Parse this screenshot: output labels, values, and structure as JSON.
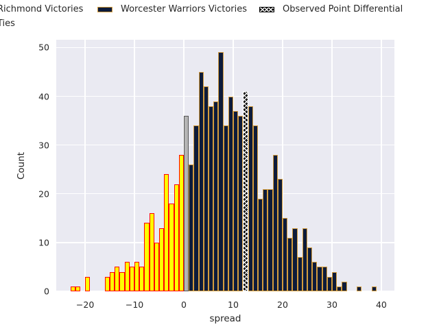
{
  "legend": {
    "items": [
      {
        "key": "richmond",
        "label": "Richmond Victories"
      },
      {
        "key": "worcester",
        "label": "Worcester Warriors Victories"
      },
      {
        "key": "observed",
        "label": "Observed Point Differential"
      },
      {
        "key": "ties",
        "label": "Ties"
      }
    ]
  },
  "colors": {
    "plot_background": "#eaeaf2",
    "grid": "#ffffff",
    "richmond_fill": "#ffff00",
    "richmond_edge": "#ff0000",
    "worcester_fill": "#0d1b3a",
    "worcester_edge": "#d49c3d",
    "ties_fill": "#b5b5b5",
    "ties_edge": "#565656",
    "observed_fill": "#000000",
    "observed_edge": "#ffffff",
    "text": "#262626"
  },
  "chart_data": {
    "type": "bar",
    "subtype": "histogram",
    "title": "",
    "xlabel": "spread",
    "ylabel": "Count",
    "xlim": [
      -25.85,
      42.65
    ],
    "ylim": [
      0,
      51.6
    ],
    "x_tick_values": [
      -20,
      -10,
      0,
      10,
      20,
      30,
      40
    ],
    "x_tick_labels": [
      "−20",
      "−10",
      "0",
      "10",
      "20",
      "30",
      "40"
    ],
    "y_tick_values": [
      0,
      10,
      20,
      30,
      40,
      50
    ],
    "y_tick_labels": [
      "0",
      "10",
      "20",
      "30",
      "40",
      "50"
    ],
    "grid": true,
    "legend_position": "top",
    "bin_width": 1,
    "observed_point_differential": 12,
    "series": [
      {
        "key": "richmond",
        "name": "Richmond Victories",
        "hatch": false,
        "edge_width": 1.5,
        "x": [
          -23,
          -22,
          -20,
          -16,
          -15,
          -14,
          -13,
          -12,
          -11,
          -10,
          -9,
          -8,
          -7,
          -6,
          -5,
          -4,
          -3,
          -2,
          -1
        ],
        "values": [
          1,
          1,
          3,
          3,
          4,
          5,
          4,
          6,
          5,
          6,
          5,
          14,
          16,
          10,
          13,
          24,
          18,
          22,
          28
        ]
      },
      {
        "key": "ties",
        "name": "Ties",
        "hatch": false,
        "edge_width": 1.5,
        "x": [
          0
        ],
        "values": [
          36
        ]
      },
      {
        "key": "worcester",
        "name": "Worcester Warriors Victories",
        "hatch": false,
        "edge_width": 1.2,
        "x": [
          1,
          2,
          3,
          4,
          5,
          6,
          7,
          8,
          9,
          10,
          11,
          13,
          14,
          15,
          16,
          17,
          18,
          19,
          20,
          21,
          22,
          23,
          24,
          25,
          26,
          27,
          28,
          29,
          30,
          31,
          32,
          35,
          38
        ],
        "values": [
          26,
          34,
          45,
          42,
          38,
          39,
          49,
          34,
          40,
          37,
          36,
          38,
          34,
          19,
          21,
          21,
          28,
          23,
          15,
          11,
          13,
          7,
          13,
          9,
          6,
          5,
          5,
          3,
          4,
          1,
          2,
          1,
          1
        ]
      },
      {
        "key": "observed",
        "name": "Observed Point Differential",
        "hatch": true,
        "edge_width": 1,
        "x": [
          12
        ],
        "values": [
          41
        ]
      }
    ]
  }
}
